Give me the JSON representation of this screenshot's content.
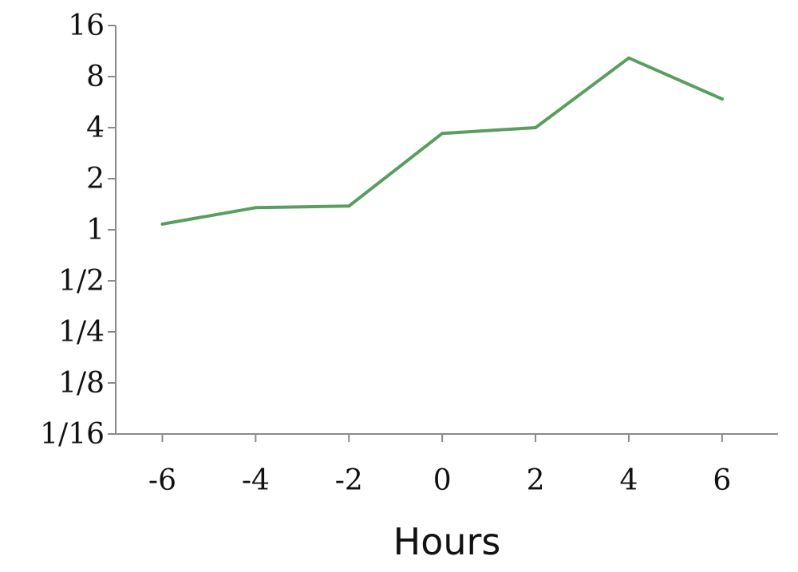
{
  "chart_data": {
    "type": "line",
    "title": "",
    "xlabel": "Hours",
    "ylabel": "",
    "y_scale": "log2",
    "x": [
      -6,
      -4,
      -2,
      0,
      2,
      4,
      6
    ],
    "x_tick_values": [
      -6,
      -4,
      -2,
      0,
      2,
      4,
      6
    ],
    "x_tick_labels": [
      "-6",
      "-4",
      "-2",
      "0",
      "2",
      "4",
      "6"
    ],
    "xlim": [
      -7,
      7.2
    ],
    "y_tick_values": [
      0.0625,
      0.125,
      0.25,
      0.5,
      1,
      2,
      4,
      8,
      16
    ],
    "y_tick_labels": [
      "1/16",
      "1/8",
      "1/4",
      "1/2",
      "1",
      "2",
      "4",
      "8",
      "16"
    ],
    "ylim": [
      0.0625,
      16
    ],
    "series": [
      {
        "values": [
          1.08,
          1.35,
          1.38,
          3.7,
          4.0,
          10.3,
          5.9
        ],
        "color": "#5a9e5f"
      }
    ],
    "grid": false,
    "legend": "none"
  }
}
